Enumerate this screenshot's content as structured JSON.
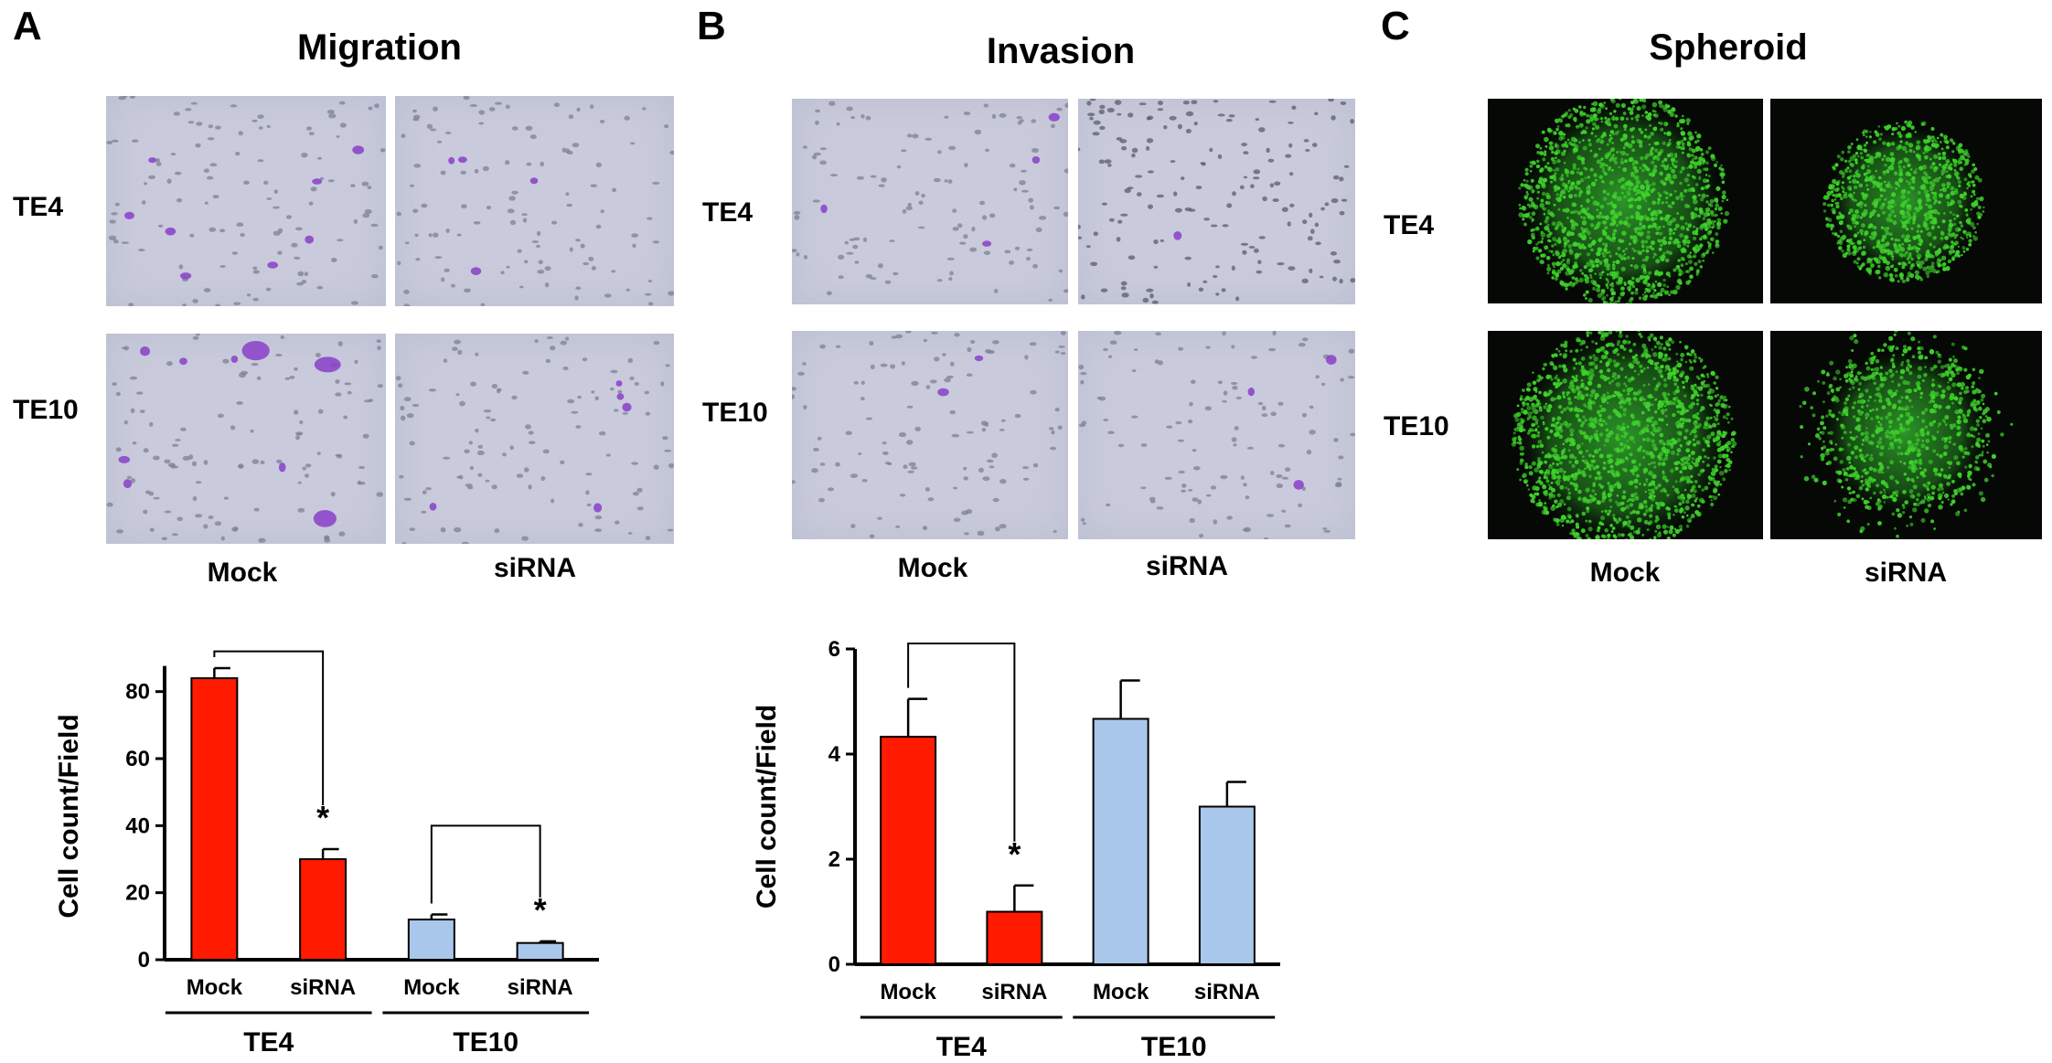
{
  "panels": {
    "A": {
      "letter": "A",
      "title": "Migration",
      "rows": [
        "TE4",
        "TE10"
      ],
      "cols": [
        "Mock",
        "siRNA"
      ]
    },
    "B": {
      "letter": "B",
      "title": "Invasion",
      "rows": [
        "TE4",
        "TE10"
      ],
      "cols": [
        "Mock",
        "siRNA"
      ]
    },
    "C": {
      "letter": "C",
      "title": "Spheroid",
      "rows": [
        "TE4",
        "TE10"
      ],
      "cols": [
        "Mock",
        "siRNA"
      ]
    }
  },
  "colors": {
    "mock_bar": "#ff1a00",
    "sirna_bar_te10": "#a9c7ea",
    "micro_bg": "#c9cbdc",
    "stain": "#8a3fc8",
    "fluo_green": "#3fd12c"
  },
  "chart_data": [
    {
      "type": "bar",
      "ylabel": "Cell count/Field",
      "ylim": [
        0,
        90
      ],
      "yticks": [
        "0",
        "20",
        "40",
        "60",
        "80"
      ],
      "categories": [
        "Mock",
        "siRNA",
        "Mock",
        "siRNA"
      ],
      "groups": [
        "TE4",
        "TE10"
      ],
      "values": [
        84,
        30,
        12,
        5
      ],
      "errors": [
        3,
        3,
        1.5,
        0.5
      ],
      "bar_colors": [
        "#ff1a00",
        "#ff1a00",
        "#a9c7ea",
        "#a9c7ea"
      ],
      "significance": [
        "*",
        "*"
      ]
    },
    {
      "type": "bar",
      "ylabel": "Cell count/Field",
      "ylim": [
        0,
        6
      ],
      "yticks": [
        "0",
        "2",
        "4",
        "6"
      ],
      "categories": [
        "Mock",
        "siRNA",
        "Mock",
        "siRNA"
      ],
      "groups": [
        "TE4",
        "TE10"
      ],
      "values": [
        4.33,
        1.0,
        4.67,
        3.0
      ],
      "errors": [
        0.72,
        0.5,
        0.73,
        0.47
      ],
      "bar_colors": [
        "#ff1a00",
        "#ff1a00",
        "#a9c7ea",
        "#a9c7ea"
      ],
      "significance": [
        "*"
      ]
    }
  ]
}
